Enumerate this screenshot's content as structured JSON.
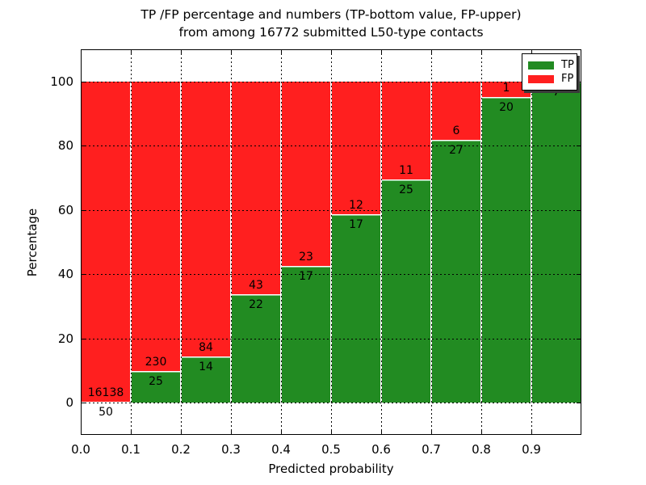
{
  "title": {
    "line1": "TP /FP percentage and numbers (TP-bottom value, FP-upper)",
    "line2": "from among 16772 submitted L50-type contacts"
  },
  "axes": {
    "xlabel": "Predicted probability",
    "ylabel": "Percentage",
    "xticks": [
      "0.0",
      "0.1",
      "0.2",
      "0.3",
      "0.4",
      "0.5",
      "0.6",
      "0.7",
      "0.8",
      "0.9"
    ],
    "yticks": [
      "0",
      "20",
      "40",
      "60",
      "80",
      "100"
    ],
    "xlim": [
      0.0,
      1.0
    ],
    "ylim": [
      -10,
      110
    ],
    "grid": "dotted black, drawn over bars",
    "tick_direction": "in"
  },
  "colors": {
    "tp": "#228b22",
    "fp": "#ff1f1f",
    "background": "#ffffff",
    "grid": "#000000"
  },
  "legend": {
    "position": "upper-right",
    "items": [
      {
        "label": "TP",
        "color": "#228b22"
      },
      {
        "label": "FP",
        "color": "#ff1f1f"
      }
    ]
  },
  "chart_data": {
    "type": "bar",
    "stacked": true,
    "normalized_to_percent": true,
    "title": "TP /FP percentage and numbers (TP-bottom value, FP-upper) from among 16772 submitted L50-type contacts",
    "xlabel": "Predicted probability",
    "ylabel": "Percentage",
    "total_submitted_contacts": 16772,
    "bin_width": 0.1,
    "categories": [
      "0.0-0.1",
      "0.1-0.2",
      "0.2-0.3",
      "0.3-0.4",
      "0.4-0.5",
      "0.5-0.6",
      "0.6-0.7",
      "0.7-0.8",
      "0.8-0.9",
      "0.9-1.0"
    ],
    "bins": [
      {
        "range": "0.0-0.1",
        "tp": 50,
        "fp": 16138,
        "tp_pct": 0.31
      },
      {
        "range": "0.1-0.2",
        "tp": 25,
        "fp": 230,
        "tp_pct": 9.8
      },
      {
        "range": "0.2-0.3",
        "tp": 14,
        "fp": 84,
        "tp_pct": 14.29
      },
      {
        "range": "0.3-0.4",
        "tp": 22,
        "fp": 43,
        "tp_pct": 33.85
      },
      {
        "range": "0.4-0.5",
        "tp": 17,
        "fp": 23,
        "tp_pct": 42.5
      },
      {
        "range": "0.5-0.6",
        "tp": 17,
        "fp": 12,
        "tp_pct": 58.62
      },
      {
        "range": "0.6-0.7",
        "tp": 25,
        "fp": 11,
        "tp_pct": 69.44
      },
      {
        "range": "0.7-0.8",
        "tp": 27,
        "fp": 6,
        "tp_pct": 81.82
      },
      {
        "range": "0.8-0.9",
        "tp": 20,
        "fp": 1,
        "tp_pct": 95.24
      },
      {
        "range": "0.9-1.0",
        "tp": 7,
        "fp": null,
        "tp_pct": 100.0
      }
    ],
    "series": [
      {
        "name": "TP",
        "counts": [
          50,
          25,
          14,
          22,
          17,
          17,
          25,
          27,
          20,
          7
        ],
        "pct": [
          0.31,
          9.8,
          14.29,
          33.85,
          42.5,
          58.62,
          69.44,
          81.82,
          95.24,
          100.0
        ]
      },
      {
        "name": "FP",
        "counts": [
          16138,
          230,
          84,
          43,
          23,
          12,
          11,
          6,
          1,
          null
        ],
        "pct": [
          99.69,
          90.2,
          85.71,
          66.15,
          57.5,
          41.38,
          30.56,
          18.18,
          4.76,
          0.0
        ]
      }
    ],
    "note_labels": "FP count printed above TP/FP boundary, TP count printed below it; FP label of last bin hidden behind legend"
  }
}
